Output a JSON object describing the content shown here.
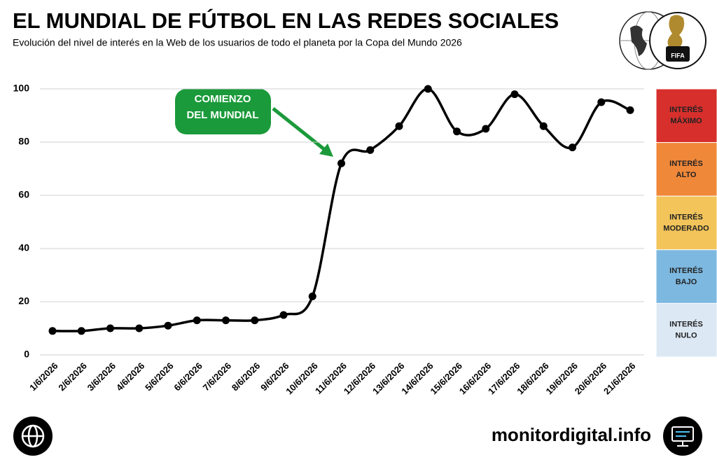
{
  "title": "EL MUNDIAL DE FÚTBOL EN LAS REDES SOCIALES",
  "subtitle": "Evolución del nivel de interés en la Web de los usuarios de todo el planeta por la Copa del Mundo 2026",
  "footer": "monitordigital.info",
  "logo_text": "FIFA",
  "chart_data": {
    "type": "line",
    "categories": [
      "1/6/2026",
      "2/6/2026",
      "3/6/2026",
      "4/6/2026",
      "5/6/2026",
      "6/6/2026",
      "7/6/2026",
      "8/6/2026",
      "9/6/2026",
      "10/6/2026",
      "11/6/2026",
      "12/6/2026",
      "13/6/2026",
      "14/6/2026",
      "15/6/2026",
      "16/6/2026",
      "17/6/2026",
      "18/6/2026",
      "19/6/2026",
      "20/6/2026",
      "21/6/2026"
    ],
    "values": [
      9,
      9,
      10,
      10,
      11,
      13,
      13,
      13,
      15,
      22,
      72,
      77,
      86,
      100,
      84,
      85,
      98,
      86,
      78,
      95,
      92
    ],
    "color": "#000000",
    "ylim": [
      0,
      100
    ],
    "yticks": [
      0,
      20,
      40,
      60,
      80,
      100
    ],
    "grid": true,
    "annotation": [
      "COMIENZO",
      "DEL MUNDIAL"
    ],
    "bands": [
      {
        "label": [
          "INTERÉS",
          "MÁXIMO"
        ],
        "color": "#d62f2c"
      },
      {
        "label": [
          "INTERÉS",
          "ALTO"
        ],
        "color": "#f0883a"
      },
      {
        "label": [
          "INTERÉS",
          "MODERADO"
        ],
        "color": "#f2c45a"
      },
      {
        "label": [
          "INTERÉS",
          "BAJO"
        ],
        "color": "#7db8e0"
      },
      {
        "label": [
          "INTERÉS",
          "NULO"
        ],
        "color": "#dce9f5"
      }
    ]
  }
}
